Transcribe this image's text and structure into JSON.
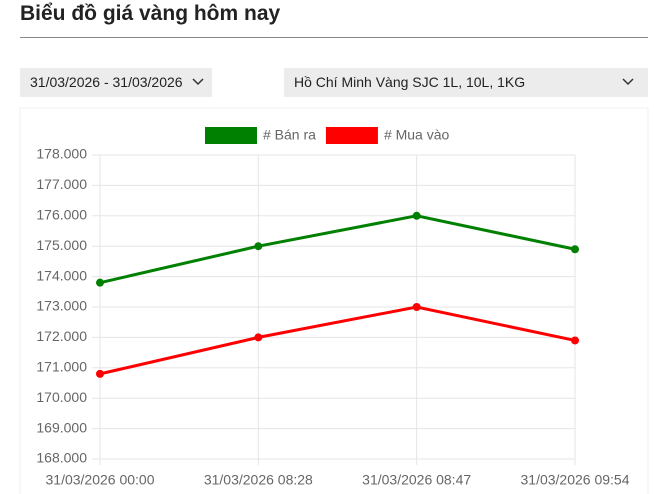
{
  "header": {
    "title": "Biểu đồ giá vàng hôm nay"
  },
  "controls": {
    "date_range": "31/03/2026 - 31/03/2026",
    "product": "Hồ Chí Minh Vàng SJC 1L, 10L, 1KG"
  },
  "chart_data": {
    "type": "line",
    "categories": [
      "31/03/2026 00:00",
      "31/03/2026 08:28",
      "31/03/2026 08:47",
      "31/03/2026 09:54"
    ],
    "series": [
      {
        "name": "# Bán ra",
        "color": "#008000",
        "values": [
          173800,
          175000,
          176000,
          174900
        ]
      },
      {
        "name": "# Mua vào",
        "color": "#ff0000",
        "values": [
          170800,
          172000,
          173000,
          171900
        ]
      }
    ],
    "ylim": [
      168000,
      178000
    ],
    "yticks": [
      {
        "value": 168000,
        "label": "168.000"
      },
      {
        "value": 169000,
        "label": "169.000"
      },
      {
        "value": 170000,
        "label": "170.000"
      },
      {
        "value": 171000,
        "label": "171.000"
      },
      {
        "value": 172000,
        "label": "172.000"
      },
      {
        "value": 173000,
        "label": "173.000"
      },
      {
        "value": 174000,
        "label": "174.000"
      },
      {
        "value": 175000,
        "label": "175.000"
      },
      {
        "value": 176000,
        "label": "176.000"
      },
      {
        "value": 177000,
        "label": "177.000"
      },
      {
        "value": 178000,
        "label": "178.000"
      }
    ],
    "grid": true,
    "legend": "top"
  }
}
